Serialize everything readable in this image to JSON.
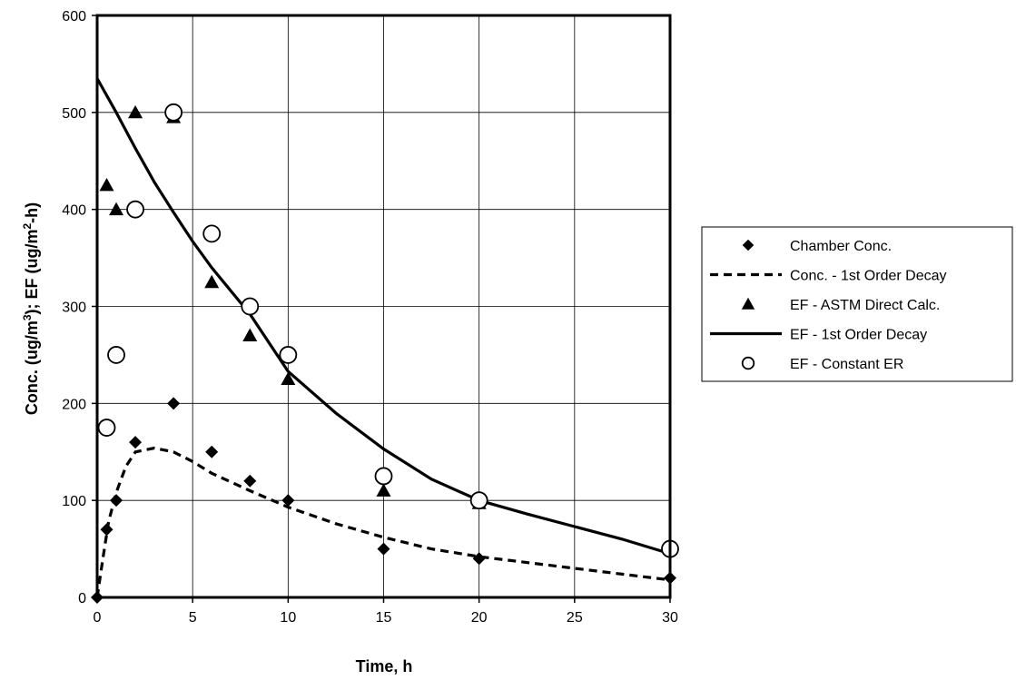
{
  "chart_data": {
    "type": "scatter",
    "title": "",
    "xlabel": "Time, h",
    "ylabel": {
      "parts": [
        {
          "text": "Conc. (ug/m",
          "sup": false
        },
        {
          "text": "3",
          "sup": true
        },
        {
          "text": "); EF (ug/m",
          "sup": false
        },
        {
          "text": "2",
          "sup": true
        },
        {
          "text": "-h)",
          "sup": false
        }
      ]
    },
    "xlim": [
      0,
      30
    ],
    "ylim": [
      0,
      600
    ],
    "x_ticks": [
      0,
      5,
      10,
      15,
      20,
      25,
      30
    ],
    "y_ticks": [
      0,
      100,
      200,
      300,
      400,
      500,
      600
    ],
    "grid": true,
    "legend_position": "right",
    "series": [
      {
        "name": "Chamber Conc.",
        "kind": "marker",
        "marker": "diamond",
        "color": "#000000",
        "points": [
          [
            0,
            0
          ],
          [
            0.5,
            70
          ],
          [
            1,
            100
          ],
          [
            2,
            160
          ],
          [
            4,
            200
          ],
          [
            6,
            150
          ],
          [
            8,
            120
          ],
          [
            10,
            100
          ],
          [
            15,
            50
          ],
          [
            20,
            40
          ],
          [
            30,
            20
          ]
        ]
      },
      {
        "name": "Conc. - 1st Order Decay",
        "kind": "line",
        "dash": "dashed",
        "color": "#000000",
        "points": [
          [
            0,
            0
          ],
          [
            0.3,
            40
          ],
          [
            0.6,
            78
          ],
          [
            1,
            108
          ],
          [
            1.5,
            135
          ],
          [
            2,
            150
          ],
          [
            3,
            154
          ],
          [
            4,
            150
          ],
          [
            5,
            140
          ],
          [
            6,
            128
          ],
          [
            8,
            110
          ],
          [
            10,
            93
          ],
          [
            12.5,
            76
          ],
          [
            15,
            62
          ],
          [
            17.5,
            50
          ],
          [
            20,
            42
          ],
          [
            25,
            30
          ],
          [
            30,
            18
          ]
        ]
      },
      {
        "name": "EF - ASTM Direct Calc.",
        "kind": "marker",
        "marker": "triangle",
        "color": "#000000",
        "points": [
          [
            0.5,
            425
          ],
          [
            1,
            400
          ],
          [
            2,
            500
          ],
          [
            4,
            495
          ],
          [
            6,
            325
          ],
          [
            8,
            270
          ],
          [
            10,
            225
          ],
          [
            15,
            110
          ],
          [
            20,
            97
          ],
          [
            30,
            50
          ]
        ]
      },
      {
        "name": "EF - 1st Order Decay",
        "kind": "line",
        "dash": "solid",
        "color": "#000000",
        "points": [
          [
            0,
            535
          ],
          [
            1,
            500
          ],
          [
            2,
            463
          ],
          [
            3,
            428
          ],
          [
            4,
            397
          ],
          [
            5,
            367
          ],
          [
            6,
            340
          ],
          [
            8,
            292
          ],
          [
            10,
            233
          ],
          [
            12.5,
            190
          ],
          [
            15,
            153
          ],
          [
            17.5,
            122
          ],
          [
            20,
            100
          ],
          [
            22.5,
            86
          ],
          [
            25,
            73
          ],
          [
            27.5,
            60
          ],
          [
            30,
            45
          ]
        ]
      },
      {
        "name": "EF - Constant ER",
        "kind": "marker",
        "marker": "circle-open",
        "color": "#000000",
        "points": [
          [
            0.5,
            175
          ],
          [
            1,
            250
          ],
          [
            2,
            400
          ],
          [
            4,
            500
          ],
          [
            6,
            375
          ],
          [
            8,
            300
          ],
          [
            10,
            250
          ],
          [
            15,
            125
          ],
          [
            20,
            100
          ],
          [
            30,
            50
          ]
        ]
      }
    ]
  }
}
